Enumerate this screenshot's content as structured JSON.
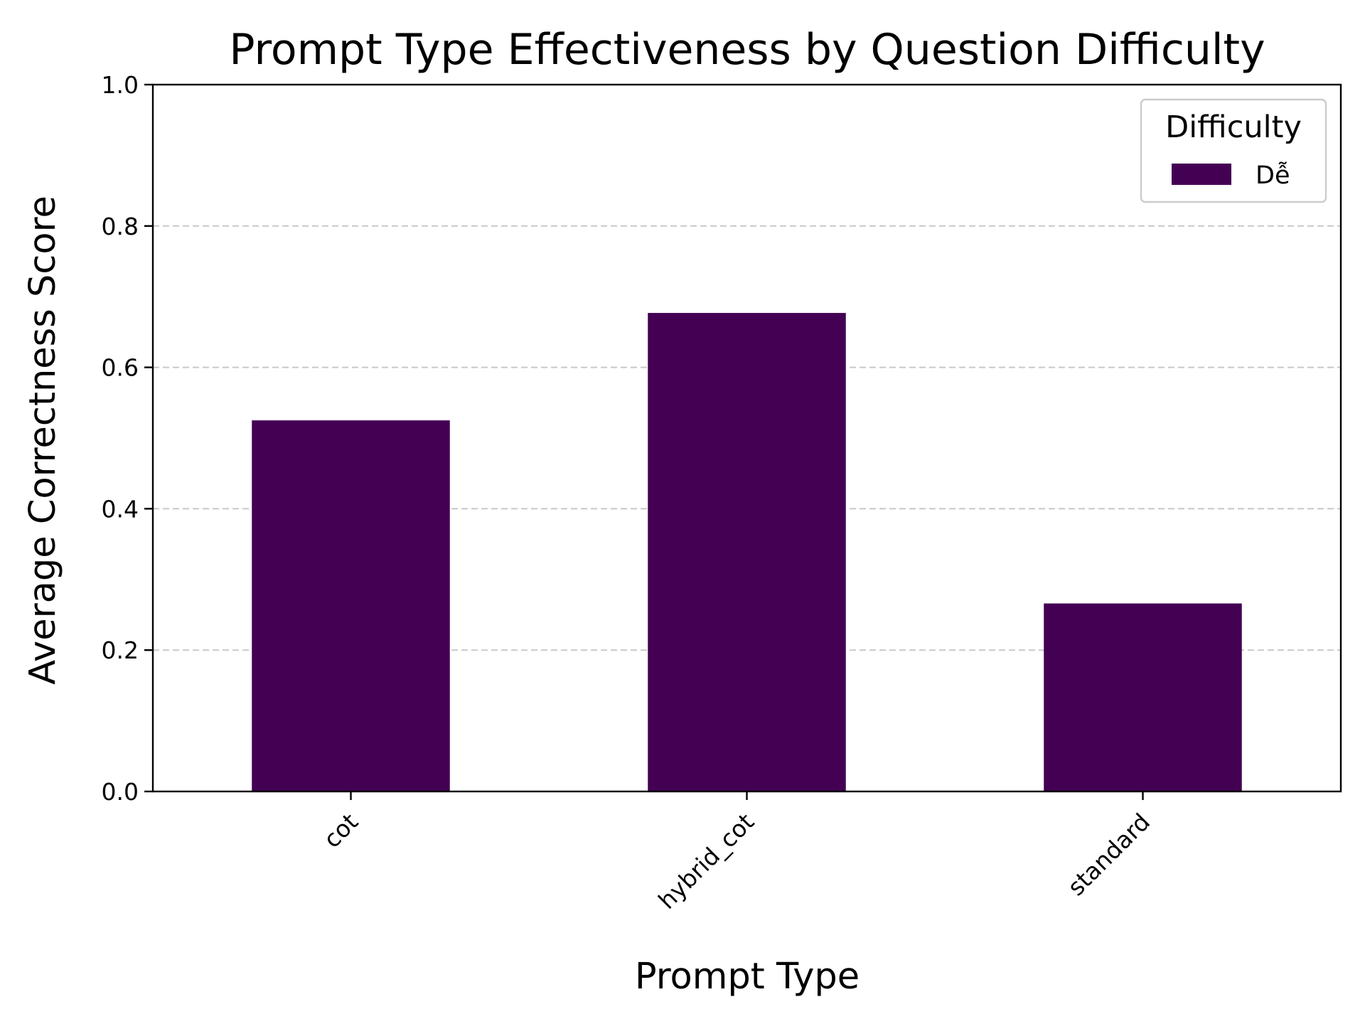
{
  "chart_data": {
    "type": "bar",
    "title": "Prompt Type Effectiveness by Question Difficulty",
    "xlabel": "Prompt Type",
    "ylabel": "Average Correctness Score",
    "categories": [
      "cot",
      "hybrid_cot",
      "standard"
    ],
    "series": [
      {
        "name": "Dễ",
        "values": [
          0.525,
          0.677,
          0.266
        ],
        "color": "#440154"
      }
    ],
    "ylim": [
      0,
      1.0
    ],
    "yticks": [
      "0.0",
      "0.2",
      "0.4",
      "0.6",
      "0.8",
      "1.0"
    ],
    "grid": "y-dashed",
    "legend": {
      "title": "Difficulty",
      "position": "top-right"
    }
  }
}
